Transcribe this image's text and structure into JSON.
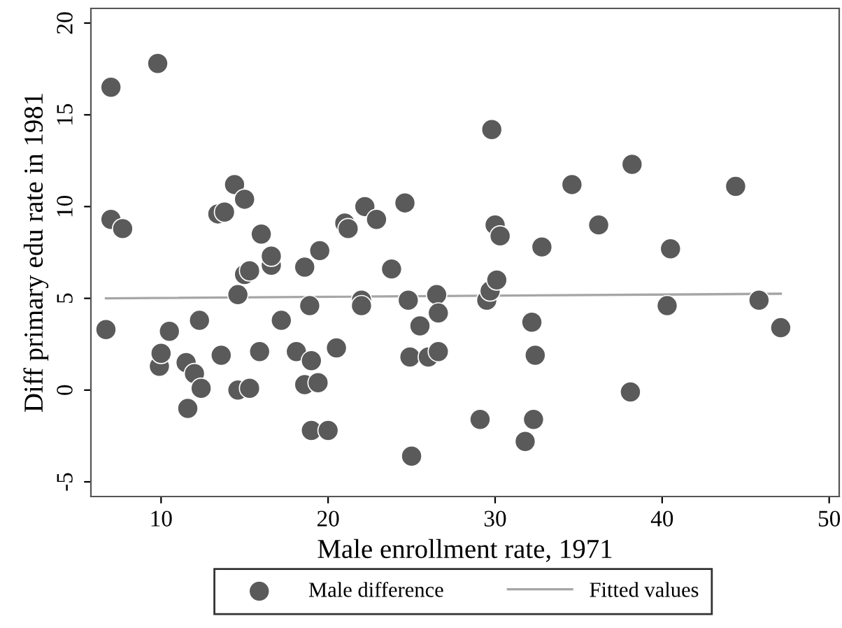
{
  "chart_data": {
    "type": "scatter",
    "xlabel": "Male enrollment rate, 1971",
    "ylabel": "Diff primary edu rate in 1981",
    "xlim": [
      5.8,
      50.6
    ],
    "xticks": [
      10,
      20,
      30,
      40,
      50
    ],
    "ylim": [
      -5.8,
      20.8
    ],
    "yticks": [
      {
        "value": -5,
        "label": "-5"
      },
      0,
      5,
      10,
      15,
      20
    ],
    "grid": false,
    "legend": "bottom",
    "marker": "circle",
    "series": [
      {
        "name": "Male difference",
        "color": "#5a5a5a",
        "x": [
          6.7,
          7.0,
          7.0,
          7.7,
          9.8,
          9.9,
          10.0,
          10.5,
          11.5,
          11.6,
          12.0,
          12.3,
          12.4,
          13.4,
          13.6,
          13.8,
          14.4,
          14.6,
          14.6,
          15.0,
          15.0,
          15.3,
          15.3,
          15.9,
          16.0,
          16.6,
          16.6,
          17.2,
          18.1,
          18.6,
          18.6,
          18.9,
          19.0,
          19.0,
          19.4,
          19.5,
          20.0,
          20.5,
          21.0,
          21.2,
          22.0,
          22.0,
          22.2,
          22.9,
          23.8,
          24.6,
          24.8,
          24.9,
          25.0,
          25.5,
          26.0,
          26.5,
          26.6,
          26.6,
          29.1,
          29.5,
          29.7,
          29.8,
          30.0,
          30.1,
          30.3,
          31.8,
          32.2,
          32.3,
          32.4,
          32.8,
          34.6,
          36.2,
          38.1,
          38.2,
          40.3,
          40.5,
          44.4,
          45.8,
          47.1
        ],
        "values": [
          3.3,
          16.5,
          9.3,
          8.8,
          17.8,
          1.3,
          2.0,
          3.2,
          1.5,
          -1.0,
          0.9,
          3.8,
          0.1,
          9.6,
          1.9,
          9.7,
          11.2,
          5.2,
          0.0,
          10.4,
          6.3,
          6.5,
          0.1,
          2.1,
          8.5,
          6.8,
          7.3,
          3.8,
          2.1,
          6.7,
          0.3,
          4.6,
          1.6,
          -2.2,
          0.4,
          7.6,
          -2.2,
          2.3,
          9.1,
          8.8,
          4.9,
          4.6,
          10.0,
          9.3,
          6.6,
          10.2,
          4.9,
          1.8,
          -3.6,
          3.5,
          1.8,
          5.2,
          4.2,
          2.1,
          -1.6,
          4.9,
          5.4,
          14.2,
          9.0,
          6.0,
          8.4,
          -2.8,
          3.7,
          -1.6,
          1.9,
          7.8,
          11.2,
          9.0,
          -0.1,
          12.3,
          4.6,
          7.7,
          11.1,
          4.9,
          3.4
        ]
      },
      {
        "name": "Fitted values",
        "type": "line",
        "color": "#a6a6a6",
        "line_style": "solid",
        "marker": "none",
        "x": [
          6.7,
          47.1
        ],
        "values": [
          5.0,
          5.25
        ]
      }
    ]
  }
}
